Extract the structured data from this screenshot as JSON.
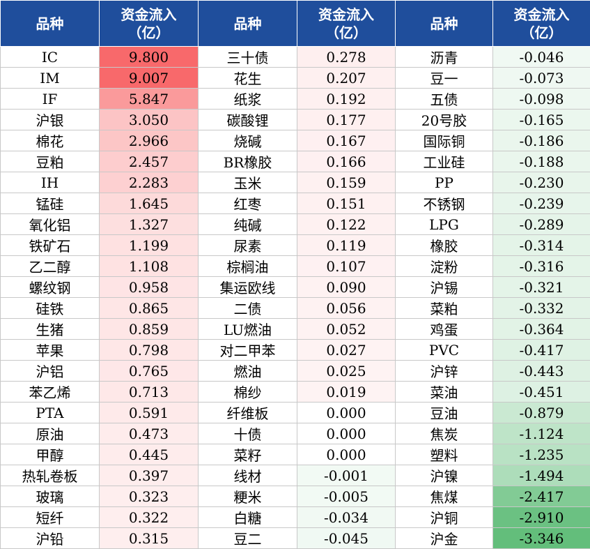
{
  "header": {
    "col_name": "品种",
    "col_flow_line1": "资金流入",
    "col_flow_line2": "（亿）"
  },
  "colors": {
    "header_bg": "#1f4e9c",
    "positive_max": "#f8696b",
    "negative_max": "#63be7b",
    "neutral": "#ffffff"
  },
  "columns": [
    {
      "rows": [
        {
          "name": "IC",
          "value": "9.800"
        },
        {
          "name": "IM",
          "value": "9.007"
        },
        {
          "name": "IF",
          "value": "5.847"
        },
        {
          "name": "沪银",
          "value": "3.050"
        },
        {
          "name": "棉花",
          "value": "2.966"
        },
        {
          "name": "豆粕",
          "value": "2.457"
        },
        {
          "name": "IH",
          "value": "2.283"
        },
        {
          "name": "锰硅",
          "value": "1.645"
        },
        {
          "name": "氧化铝",
          "value": "1.327"
        },
        {
          "name": "铁矿石",
          "value": "1.199"
        },
        {
          "name": "乙二醇",
          "value": "1.108"
        },
        {
          "name": "螺纹钢",
          "value": "0.958"
        },
        {
          "name": "硅铁",
          "value": "0.865"
        },
        {
          "name": "生猪",
          "value": "0.859"
        },
        {
          "name": "苹果",
          "value": "0.798"
        },
        {
          "name": "沪铝",
          "value": "0.765"
        },
        {
          "name": "苯乙烯",
          "value": "0.713"
        },
        {
          "name": "PTA",
          "value": "0.591"
        },
        {
          "name": "原油",
          "value": "0.473"
        },
        {
          "name": "甲醇",
          "value": "0.445"
        },
        {
          "name": "热轧卷板",
          "value": "0.397"
        },
        {
          "name": "玻璃",
          "value": "0.323"
        },
        {
          "name": "短纤",
          "value": "0.322"
        },
        {
          "name": "沪铅",
          "value": "0.315"
        }
      ]
    },
    {
      "rows": [
        {
          "name": "三十债",
          "value": "0.278"
        },
        {
          "name": "花生",
          "value": "0.207"
        },
        {
          "name": "纸浆",
          "value": "0.192"
        },
        {
          "name": "碳酸锂",
          "value": "0.177"
        },
        {
          "name": "烧碱",
          "value": "0.167"
        },
        {
          "name": "BR橡胶",
          "value": "0.166"
        },
        {
          "name": "玉米",
          "value": "0.159"
        },
        {
          "name": "红枣",
          "value": "0.151"
        },
        {
          "name": "纯碱",
          "value": "0.122"
        },
        {
          "name": "尿素",
          "value": "0.119"
        },
        {
          "name": "棕榈油",
          "value": "0.107"
        },
        {
          "name": "集运欧线",
          "value": "0.090"
        },
        {
          "name": "二债",
          "value": "0.056"
        },
        {
          "name": "LU燃油",
          "value": "0.052"
        },
        {
          "name": "对二甲苯",
          "value": "0.027"
        },
        {
          "name": "燃油",
          "value": "0.025"
        },
        {
          "name": "棉纱",
          "value": "0.019"
        },
        {
          "name": "纤维板",
          "value": "0.000"
        },
        {
          "name": "十债",
          "value": "0.000"
        },
        {
          "name": "菜籽",
          "value": "0.000"
        },
        {
          "name": "线材",
          "value": "-0.001"
        },
        {
          "name": "粳米",
          "value": "-0.005"
        },
        {
          "name": "白糖",
          "value": "-0.034"
        },
        {
          "name": "豆二",
          "value": "-0.045"
        }
      ]
    },
    {
      "rows": [
        {
          "name": "沥青",
          "value": "-0.046"
        },
        {
          "name": "豆一",
          "value": "-0.073"
        },
        {
          "name": "五债",
          "value": "-0.098"
        },
        {
          "name": "20号胶",
          "value": "-0.165"
        },
        {
          "name": "国际铜",
          "value": "-0.186"
        },
        {
          "name": "工业硅",
          "value": "-0.188"
        },
        {
          "name": "PP",
          "value": "-0.230"
        },
        {
          "name": "不锈钢",
          "value": "-0.239"
        },
        {
          "name": "LPG",
          "value": "-0.289"
        },
        {
          "name": "橡胶",
          "value": "-0.314"
        },
        {
          "name": "淀粉",
          "value": "-0.316"
        },
        {
          "name": "沪锡",
          "value": "-0.321"
        },
        {
          "name": "菜粕",
          "value": "-0.332"
        },
        {
          "name": "鸡蛋",
          "value": "-0.364"
        },
        {
          "name": "PVC",
          "value": "-0.417"
        },
        {
          "name": "沪锌",
          "value": "-0.443"
        },
        {
          "name": "菜油",
          "value": "-0.451"
        },
        {
          "name": "豆油",
          "value": "-0.879"
        },
        {
          "name": "焦炭",
          "value": "-1.124"
        },
        {
          "name": "塑料",
          "value": "-1.235"
        },
        {
          "name": "沪镍",
          "value": "-1.494"
        },
        {
          "name": "焦煤",
          "value": "-2.417"
        },
        {
          "name": "沪铜",
          "value": "-2.910"
        },
        {
          "name": "沪金",
          "value": "-3.346"
        }
      ]
    }
  ]
}
